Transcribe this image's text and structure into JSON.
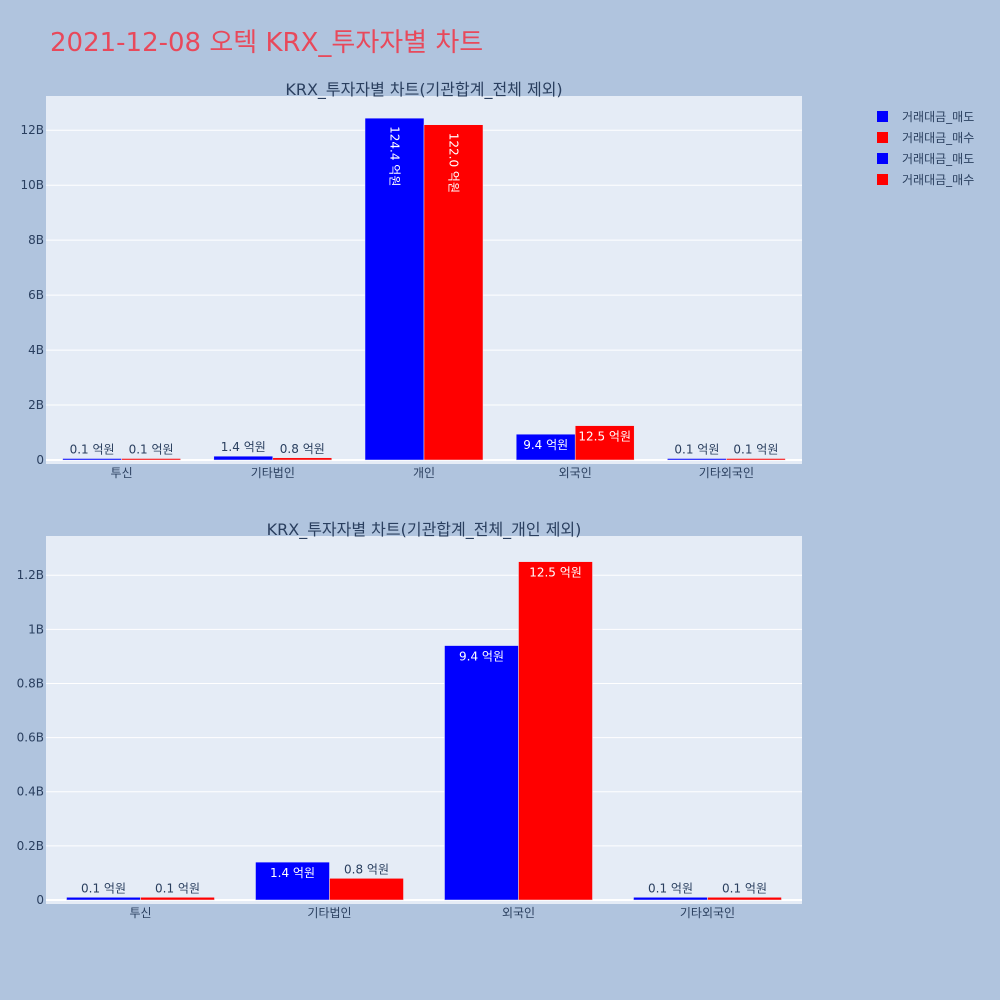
{
  "page_title": "2021-12-08 오텍 KRX_투자자별 차트",
  "colors": {
    "sell": "#0000ff",
    "buy": "#ff0000",
    "plot_bg": "#e5ecf6",
    "page_bg": "#b0c4de",
    "title": "#e8495b"
  },
  "legend": [
    "거래대금_매도",
    "거래대금_매수",
    "거래대금_매도",
    "거래대금_매수"
  ],
  "chart_data": [
    {
      "type": "bar",
      "title": "KRX_투자자별 차트(기관합계_전체 제외)",
      "categories": [
        "투신",
        "기타법인",
        "개인",
        "외국인",
        "기타외국인"
      ],
      "series": [
        {
          "name": "거래대금_매도",
          "values": [
            10000000,
            140000000,
            12440000000,
            940000000,
            10000000
          ],
          "labels": [
            "0.1 억원",
            "1.4 억원",
            "124.4 억원",
            "9.4 억원",
            "0.1 억원"
          ]
        },
        {
          "name": "거래대금_매수",
          "values": [
            10000000,
            80000000,
            12200000000,
            1250000000,
            10000000
          ],
          "labels": [
            "0.1 억원",
            "0.8 억원",
            "122.0 억원",
            "12.5 억원",
            "0.1 억원"
          ]
        }
      ],
      "ylim": [
        0,
        13100000000
      ],
      "yticks": [
        0,
        2000000000,
        4000000000,
        6000000000,
        8000000000,
        10000000000,
        12000000000
      ],
      "ytick_labels": [
        "0",
        "2B",
        "4B",
        "6B",
        "8B",
        "10B",
        "12B"
      ],
      "legend_position": "top-right",
      "grid": true
    },
    {
      "type": "bar",
      "title": "KRX_투자자별 차트(기관합계_전체_개인 제외)",
      "categories": [
        "투신",
        "기타법인",
        "외국인",
        "기타외국인"
      ],
      "series": [
        {
          "name": "거래대금_매도",
          "values": [
            10000000,
            140000000,
            940000000,
            10000000
          ],
          "labels": [
            "0.1 억원",
            "1.4 억원",
            "9.4 억원",
            "0.1 억원"
          ]
        },
        {
          "name": "거래대금_매수",
          "values": [
            10000000,
            80000000,
            1250000000,
            10000000
          ],
          "labels": [
            "0.1 억원",
            "0.8 억원",
            "12.5 억원",
            "0.1 억원"
          ]
        }
      ],
      "ylim": [
        0,
        1330000000
      ],
      "yticks": [
        0,
        200000000,
        400000000,
        600000000,
        800000000,
        1000000000,
        1200000000
      ],
      "ytick_labels": [
        "0",
        "0.2B",
        "0.4B",
        "0.6B",
        "0.8B",
        "1B",
        "1.2B"
      ],
      "grid": true
    }
  ]
}
